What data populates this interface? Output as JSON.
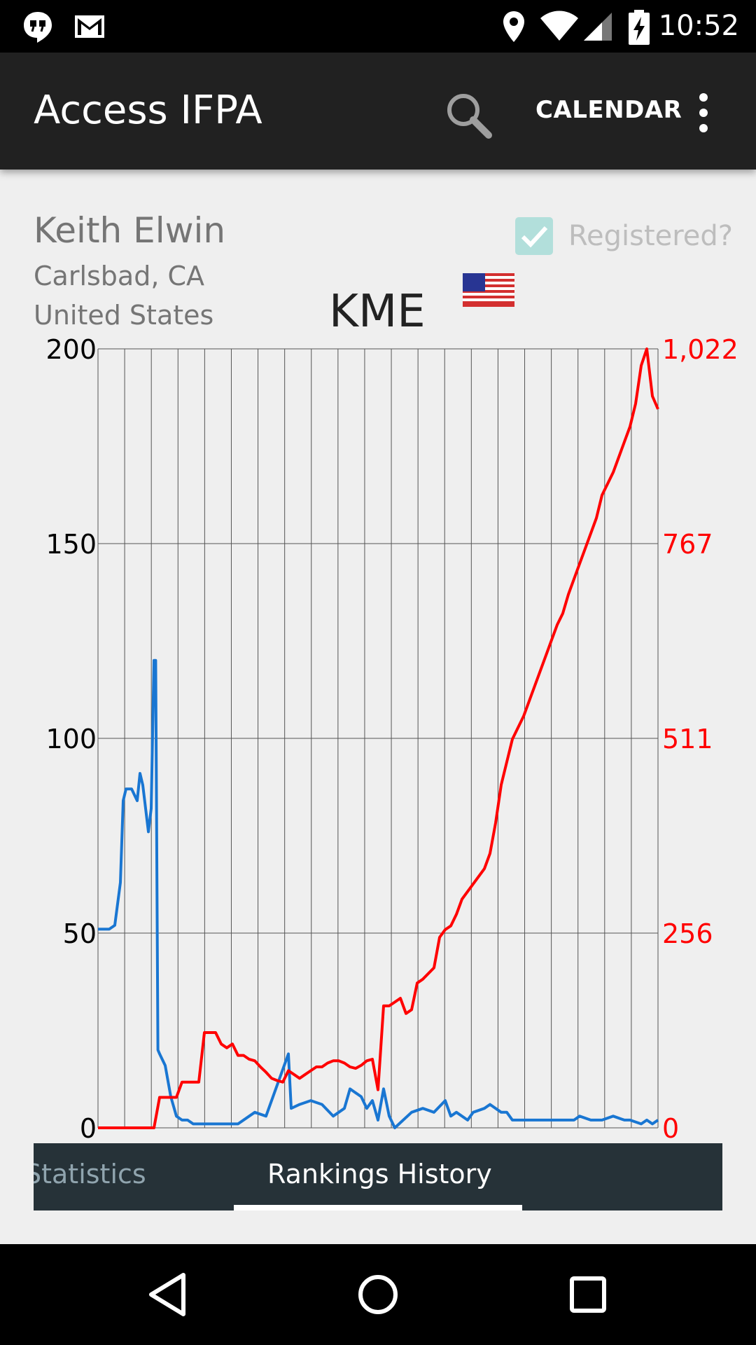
{
  "status_bar": {
    "time": "10:52",
    "icons": [
      "hangouts-icon",
      "gmail-icon",
      "location-icon",
      "wifi-icon",
      "signal-icon",
      "battery-charging-icon"
    ]
  },
  "app_bar": {
    "title": "Access IFPA",
    "search_icon": "search-icon",
    "calendar_label": "CALENDAR",
    "overflow_icon": "more-vert-icon"
  },
  "player": {
    "name": "Keith Elwin",
    "city": "Carlsbad, CA",
    "country": "United States",
    "initials": "KME",
    "registered_label": "Registered?",
    "registered_checked": true,
    "flag": "us-flag-icon"
  },
  "chart_data": {
    "type": "line",
    "grid": true,
    "left_axis": {
      "ticks": [
        "0",
        "50",
        "100",
        "150",
        "200"
      ],
      "range": [
        0,
        200
      ],
      "color": "#000000"
    },
    "right_axis": {
      "ticks": [
        "0",
        "256",
        "511",
        "767",
        "1,022"
      ],
      "range": [
        0,
        1022
      ],
      "color": "#ff0000"
    },
    "x_range": [
      0,
      100
    ],
    "series": [
      {
        "axis": "left",
        "color": "#1976d2",
        "points": [
          [
            0,
            51
          ],
          [
            2,
            51
          ],
          [
            3,
            52
          ],
          [
            4,
            63
          ],
          [
            4.5,
            84
          ],
          [
            5,
            87
          ],
          [
            6,
            87
          ],
          [
            7,
            84
          ],
          [
            7.5,
            91
          ],
          [
            8,
            88
          ],
          [
            9,
            76
          ],
          [
            9.5,
            82
          ],
          [
            10,
            120
          ],
          [
            10.3,
            120
          ],
          [
            10.7,
            20
          ],
          [
            11,
            19
          ],
          [
            12,
            16
          ],
          [
            13,
            8
          ],
          [
            14,
            3
          ],
          [
            15,
            2
          ],
          [
            16,
            2
          ],
          [
            17,
            1
          ],
          [
            20,
            1
          ],
          [
            25,
            1
          ],
          [
            27,
            3
          ],
          [
            28,
            4
          ],
          [
            30,
            3
          ],
          [
            34,
            19
          ],
          [
            34.5,
            5
          ],
          [
            36,
            6
          ],
          [
            38,
            7
          ],
          [
            40,
            6
          ],
          [
            42,
            3
          ],
          [
            44,
            5
          ],
          [
            45,
            10
          ],
          [
            47,
            8
          ],
          [
            48,
            5
          ],
          [
            49,
            7
          ],
          [
            50,
            2
          ],
          [
            51,
            10
          ],
          [
            52,
            3
          ],
          [
            53,
            0
          ],
          [
            56,
            4
          ],
          [
            58,
            5
          ],
          [
            60,
            4
          ],
          [
            62,
            7
          ],
          [
            63,
            3
          ],
          [
            64,
            4
          ],
          [
            66,
            2
          ],
          [
            67,
            4
          ],
          [
            69,
            5
          ],
          [
            70,
            6
          ],
          [
            72,
            4
          ],
          [
            73,
            4
          ],
          [
            74,
            2
          ],
          [
            80,
            2
          ],
          [
            85,
            2
          ],
          [
            86,
            3
          ],
          [
            88,
            2
          ],
          [
            90,
            2
          ],
          [
            92,
            3
          ],
          [
            94,
            2
          ],
          [
            95,
            2
          ],
          [
            97,
            1
          ],
          [
            98,
            2
          ],
          [
            99,
            1
          ],
          [
            100,
            2
          ]
        ]
      },
      {
        "axis": "right",
        "color": "#ff0000",
        "points": [
          [
            0,
            0
          ],
          [
            10,
            0
          ],
          [
            11,
            40
          ],
          [
            14,
            40
          ],
          [
            15,
            60
          ],
          [
            18,
            60
          ],
          [
            19,
            125
          ],
          [
            21,
            125
          ],
          [
            22,
            110
          ],
          [
            23,
            105
          ],
          [
            24,
            110
          ],
          [
            25,
            95
          ],
          [
            26,
            95
          ],
          [
            27,
            90
          ],
          [
            28,
            88
          ],
          [
            29,
            80
          ],
          [
            30,
            73
          ],
          [
            31,
            65
          ],
          [
            32,
            62
          ],
          [
            33,
            60
          ],
          [
            34,
            75
          ],
          [
            35,
            70
          ],
          [
            36,
            65
          ],
          [
            37,
            70
          ],
          [
            38,
            75
          ],
          [
            39,
            80
          ],
          [
            40,
            80
          ],
          [
            41,
            85
          ],
          [
            42,
            88
          ],
          [
            43,
            88
          ],
          [
            44,
            85
          ],
          [
            45,
            80
          ],
          [
            46,
            78
          ],
          [
            47,
            82
          ],
          [
            48,
            88
          ],
          [
            49,
            90
          ],
          [
            50,
            50
          ],
          [
            51,
            160
          ],
          [
            52,
            160
          ],
          [
            53,
            165
          ],
          [
            54,
            170
          ],
          [
            55,
            150
          ],
          [
            56,
            155
          ],
          [
            57,
            190
          ],
          [
            58,
            195
          ],
          [
            60,
            210
          ],
          [
            61,
            250
          ],
          [
            62,
            260
          ],
          [
            63,
            265
          ],
          [
            64,
            280
          ],
          [
            65,
            300
          ],
          [
            66,
            310
          ],
          [
            67,
            320
          ],
          [
            68,
            330
          ],
          [
            69,
            340
          ],
          [
            70,
            360
          ],
          [
            71,
            400
          ],
          [
            72,
            450
          ],
          [
            73,
            480
          ],
          [
            74,
            510
          ],
          [
            75,
            525
          ],
          [
            76,
            540
          ],
          [
            77,
            560
          ],
          [
            78,
            580
          ],
          [
            79,
            600
          ],
          [
            80,
            620
          ],
          [
            81,
            640
          ],
          [
            82,
            660
          ],
          [
            83,
            675
          ],
          [
            84,
            700
          ],
          [
            85,
            720
          ],
          [
            86,
            740
          ],
          [
            87,
            760
          ],
          [
            88,
            780
          ],
          [
            89,
            800
          ],
          [
            90,
            830
          ],
          [
            91,
            845
          ],
          [
            92,
            860
          ],
          [
            93,
            880
          ],
          [
            94,
            900
          ],
          [
            95,
            920
          ],
          [
            96,
            950
          ],
          [
            97,
            1000
          ],
          [
            98,
            1022
          ],
          [
            99,
            960
          ],
          [
            100,
            943
          ]
        ]
      }
    ]
  },
  "tabs": {
    "items": [
      {
        "label": "Statistics",
        "active": false
      },
      {
        "label": "Rankings History",
        "active": true
      }
    ]
  },
  "nav_bar": {
    "back_icon": "back-icon",
    "home_icon": "home-icon",
    "recents_icon": "recents-icon"
  }
}
